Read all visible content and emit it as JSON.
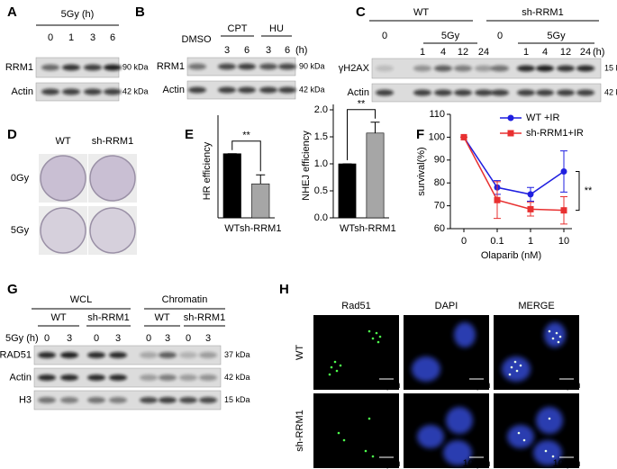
{
  "panels": {
    "A": {
      "label": "A",
      "treatment": "5Gy (h)",
      "lanes": [
        "0",
        "1",
        "3",
        "6"
      ],
      "blots": [
        {
          "protein": "RRM1",
          "size": "90 kDa"
        },
        {
          "protein": "Actin",
          "size": "42 kDa"
        }
      ]
    },
    "B": {
      "label": "B",
      "control": "DMSO",
      "groups": [
        "CPT",
        "HU"
      ],
      "lanes": [
        "3",
        "6",
        "3",
        "6"
      ],
      "unit": "(h)",
      "blots": [
        {
          "protein": "RRM1",
          "size": "90 kDa"
        },
        {
          "protein": "Actin",
          "size": "42 kDa"
        }
      ]
    },
    "C": {
      "label": "C",
      "groups": [
        "WT",
        "sh-RRM1"
      ],
      "doses": [
        "0",
        "5Gy",
        "0",
        "5Gy"
      ],
      "lanes": [
        "1",
        "4",
        "12",
        "24",
        "1",
        "4",
        "12",
        "24"
      ],
      "unit": "(h)",
      "blots": [
        {
          "protein": "γH2AX",
          "size": "15 kDa"
        },
        {
          "protein": "Actin",
          "size": "42 kDa"
        }
      ]
    },
    "D": {
      "label": "D",
      "columns": [
        "WT",
        "sh-RRM1"
      ],
      "rows": [
        "0Gy",
        "5Gy"
      ]
    },
    "E": {
      "label": "E"
    },
    "F": {
      "label": "F"
    },
    "G": {
      "label": "G",
      "fractions": [
        "WCL",
        "Chromatin"
      ],
      "groups": [
        "WT",
        "sh-RRM1",
        "WT",
        "sh-RRM1"
      ],
      "treatment": "5Gy (h)",
      "lanes": [
        "0",
        "3",
        "0",
        "3",
        "0",
        "3",
        "0",
        "3"
      ],
      "blots": [
        {
          "protein": "RAD51",
          "size": "37 kDa"
        },
        {
          "protein": "Actin",
          "size": "42 kDa"
        },
        {
          "protein": "H3",
          "size": "15 kDa"
        }
      ]
    },
    "H": {
      "label": "H",
      "columns": [
        "Rad51",
        "DAPI",
        "MERGE"
      ],
      "rows": [
        "WT",
        "sh-RRM1"
      ],
      "scale_bars": [
        "10 μm",
        "10 μm",
        "10 μm",
        "10 μm",
        "10 μm",
        "10 μm"
      ]
    }
  },
  "chart_data": [
    {
      "type": "bar",
      "ylabel": "HR efficiency",
      "categories": [
        "WT",
        "sh-RRM1"
      ],
      "values": [
        1.0,
        0.53
      ],
      "errors": [
        0,
        0.14
      ],
      "colors": [
        "#000000",
        "#a6a6a6"
      ],
      "ylim": [
        0,
        1.6
      ],
      "annotation": "**"
    },
    {
      "type": "bar",
      "ylabel": "NHEJ efficiency",
      "categories": [
        "WT",
        "sh-RRM1"
      ],
      "values": [
        1.0,
        1.57
      ],
      "errors": [
        0,
        0.2
      ],
      "colors": [
        "#000000",
        "#a6a6a6"
      ],
      "ylim": [
        0,
        2.1
      ],
      "yticks": [
        {
          "value": 0,
          "label": "0.0"
        },
        {
          "value": 0.5,
          "label": "0.5"
        },
        {
          "value": 1,
          "label": "1.0"
        },
        {
          "value": 1.5,
          "label": "1.5"
        },
        {
          "value": 2,
          "label": "2.0"
        }
      ],
      "annotation": "**"
    },
    {
      "type": "line",
      "xlabel": "Olaparib (nM)",
      "ylabel": "survival(%)",
      "categories": [
        "0",
        "0.1",
        "1",
        "10"
      ],
      "ylim": [
        60,
        110
      ],
      "yticks": [
        60,
        70,
        80,
        90,
        100,
        110
      ],
      "legend": "upper right",
      "annotation": "**",
      "series": [
        {
          "name": "WT +IR",
          "color": "#1f1fe0",
          "marker": "circle",
          "values": [
            100,
            78,
            75,
            85
          ],
          "errors": [
            0,
            3,
            3,
            9
          ]
        },
        {
          "name": "sh-RRM1+IR",
          "color": "#e83030",
          "marker": "square",
          "values": [
            100,
            72.5,
            68.5,
            68
          ],
          "errors": [
            0,
            8,
            3,
            6
          ]
        }
      ]
    }
  ]
}
